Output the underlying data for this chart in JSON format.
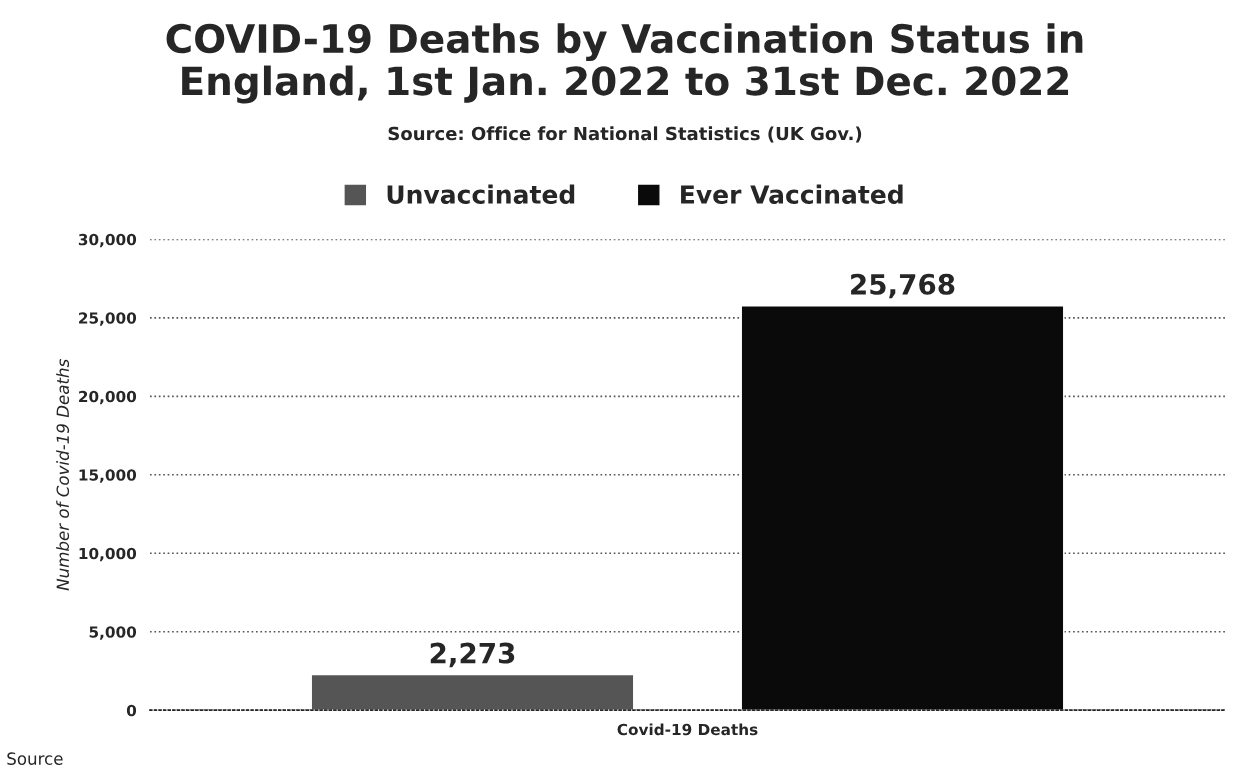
{
  "chart_data": {
    "type": "bar",
    "title": "COVID-19 Deaths by Vaccination Status in\nEngland, 1st Jan. 2022 to 31st Dec. 2022",
    "subtitle": "Source: Office for National Statistics (UK Gov.)",
    "ylabel": "Number of Covid-19 Deaths",
    "categories": [
      "Covid-19 Deaths"
    ],
    "series": [
      {
        "name": "Unvaccinated",
        "color": "#555555",
        "values": [
          2273
        ],
        "value_labels": [
          "2,273"
        ]
      },
      {
        "name": "Ever Vaccinated",
        "color": "#0a0a0a",
        "values": [
          25768
        ],
        "value_labels": [
          "25,768"
        ]
      }
    ],
    "ylim": [
      0,
      30000
    ],
    "yticks": [
      {
        "value": 0,
        "label": "0"
      },
      {
        "value": 5000,
        "label": "5,000"
      },
      {
        "value": 10000,
        "label": "10,000"
      },
      {
        "value": 15000,
        "label": "15,000"
      },
      {
        "value": 20000,
        "label": "20,000"
      },
      {
        "value": 25000,
        "label": "25,000"
      },
      {
        "value": 30000,
        "label": "30,000"
      }
    ],
    "grid": "y",
    "legend": "top",
    "annotations": [
      "Source"
    ]
  }
}
